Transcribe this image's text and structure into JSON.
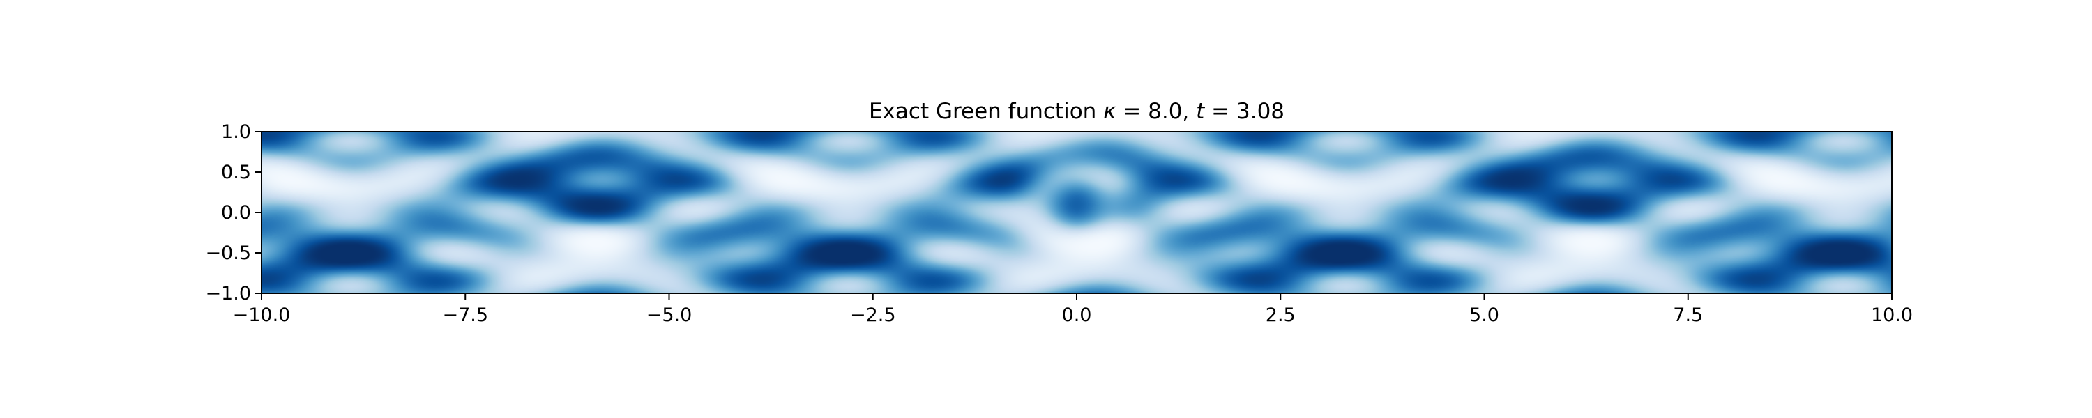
{
  "chart_data": {
    "type": "heatmap",
    "title": "Exact Green function κ = 8.0, t = 3.08",
    "title_parts": {
      "prefix": "Exact Green function ",
      "kappa_symbol": "κ",
      "kappa_value": " = 8.0, ",
      "t_symbol": "t",
      "t_value": " = 3.08"
    },
    "xlabel": "",
    "ylabel": "",
    "xlim": [
      -10.0,
      10.0
    ],
    "ylim": [
      -1.0,
      1.0
    ],
    "x_ticks": [
      -10.0,
      -7.5,
      -5.0,
      -2.5,
      0.0,
      2.5,
      5.0,
      7.5,
      10.0
    ],
    "x_tick_labels": [
      "−10.0",
      "−7.5",
      "−5.0",
      "−2.5",
      "0.0",
      "2.5",
      "5.0",
      "7.5",
      "10.0"
    ],
    "y_ticks": [
      1.0,
      0.5,
      0.0,
      -0.5,
      -1.0
    ],
    "y_tick_labels": [
      "1.0",
      "0.5",
      "0.0",
      "−0.5",
      "−1.0"
    ],
    "colormap": "Blues",
    "colormap_colors": [
      "#f7fbff",
      "#deebf7",
      "#c6dbef",
      "#9ecae1",
      "#6baed6",
      "#4292c6",
      "#2171b5",
      "#08519c",
      "#08306b"
    ],
    "parameters": {
      "kappa": 8.0,
      "t": 3.08
    },
    "center_feature": {
      "x": 0.0,
      "y": 0.1
    },
    "grid": false,
    "legend": "none"
  }
}
